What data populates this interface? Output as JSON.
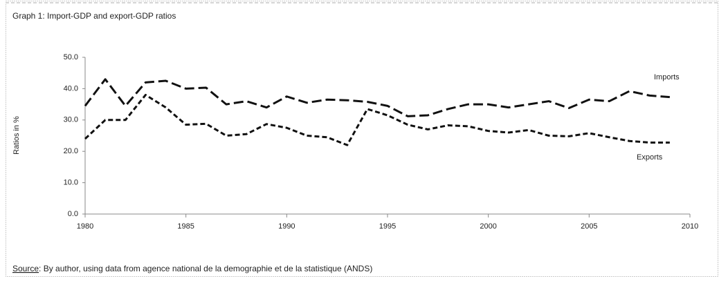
{
  "chart_data": {
    "type": "line",
    "title": "Graph 1: Import-GDP and export-GDP ratios",
    "ylabel": "Ratios in %",
    "source_label": "Source",
    "source_text": ": By author, using data from agence national de la demographie et de la statistique (ANDS)",
    "x": [
      1980,
      1981,
      1982,
      1983,
      1984,
      1985,
      1986,
      1987,
      1988,
      1989,
      1990,
      1991,
      1992,
      1993,
      1994,
      1995,
      1996,
      1997,
      1998,
      1999,
      2000,
      2001,
      2002,
      2003,
      2004,
      2005,
      2006,
      2007,
      2008,
      2009
    ],
    "series": [
      {
        "name": "Imports",
        "color": "#111111",
        "values": [
          34.5,
          43,
          34.5,
          42,
          42.5,
          40,
          40.3,
          35,
          36,
          34,
          37.5,
          35.5,
          36.5,
          36.3,
          35.8,
          34.5,
          31.2,
          31.5,
          33.5,
          35,
          35,
          34,
          35,
          36,
          33.8,
          36.5,
          36,
          39.2,
          37.8,
          37.3
        ]
      },
      {
        "name": "Exports",
        "color": "#111111",
        "values": [
          24,
          30,
          30,
          38,
          34,
          28.5,
          28.8,
          25,
          25.5,
          28.7,
          27.5,
          25,
          24.5,
          22,
          33.5,
          31.5,
          28.5,
          27,
          28.3,
          28,
          26.5,
          26,
          26.8,
          25,
          24.8,
          25.8,
          24.5,
          23.3,
          22.8,
          22.8
        ]
      }
    ],
    "xlim": [
      1980,
      2010
    ],
    "xticks": [
      1980,
      1985,
      1990,
      1995,
      2000,
      2005,
      2010
    ],
    "ylim": [
      0,
      50
    ],
    "yticks": [
      {
        "value": 0,
        "label": "0.0"
      },
      {
        "value": 10,
        "label": "10.0"
      },
      {
        "value": 20,
        "label": "20.0"
      },
      {
        "value": 30,
        "label": "30.0"
      },
      {
        "value": 40,
        "label": "40.0"
      },
      {
        "value": 50,
        "label": "50.0"
      }
    ]
  }
}
